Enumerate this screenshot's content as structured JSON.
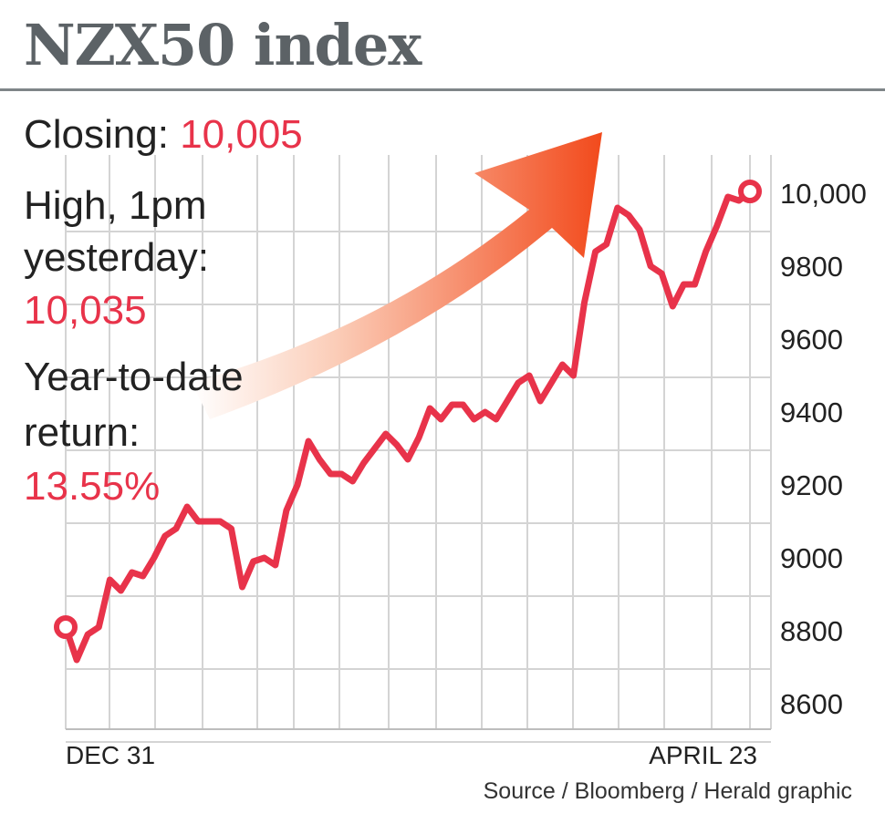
{
  "title": "NZX50 index",
  "stats": {
    "closing_label": "Closing: ",
    "closing_value": "10,005",
    "high_label_1": "High, 1pm",
    "high_label_2": "yesterday:",
    "high_value": "10,035",
    "ytd_label_1": "Year-to-date",
    "ytd_label_2": "return:",
    "ytd_value": "13.55%"
  },
  "source": "Source / Bloomberg / Herald graphic",
  "colors": {
    "accent": "#e8334a",
    "line": "#e8334a",
    "grid": "#d4d4d4",
    "arrow_start": "#ffffff",
    "arrow_end": "#f24a1c"
  },
  "chart_data": {
    "type": "line",
    "title": "NZX50 index",
    "xlabel": "",
    "ylabel": "",
    "ylim": [
      8560,
      10100
    ],
    "yticks": [
      8600,
      8800,
      9000,
      9200,
      9400,
      9600,
      9800,
      10000
    ],
    "ytick_labels": [
      "8600",
      "8800",
      "9000",
      "9200",
      "9400",
      "9600",
      "9800",
      "10,000"
    ],
    "xtick_labels": [
      "DEC 31",
      "APRIL 23"
    ],
    "grid": true,
    "series": [
      {
        "values": [
          8810,
          8720,
          8790,
          8810,
          8940,
          8910,
          8960,
          8950,
          9000,
          9060,
          9080,
          9140,
          9100,
          9100,
          9100,
          9080,
          8920,
          8990,
          9000,
          8980,
          9130,
          9200,
          9320,
          9270,
          9230,
          9230,
          9210,
          9260,
          9300,
          9340,
          9310,
          9270,
          9330,
          9410,
          9380,
          9420,
          9420,
          9380,
          9400,
          9380,
          9430,
          9480,
          9500,
          9430,
          9480,
          9530,
          9500,
          9700,
          9840,
          9860,
          9960,
          9940,
          9900,
          9800,
          9780,
          9690,
          9750,
          9750,
          9840,
          9910,
          9990,
          9980,
          10005
        ]
      }
    ]
  }
}
